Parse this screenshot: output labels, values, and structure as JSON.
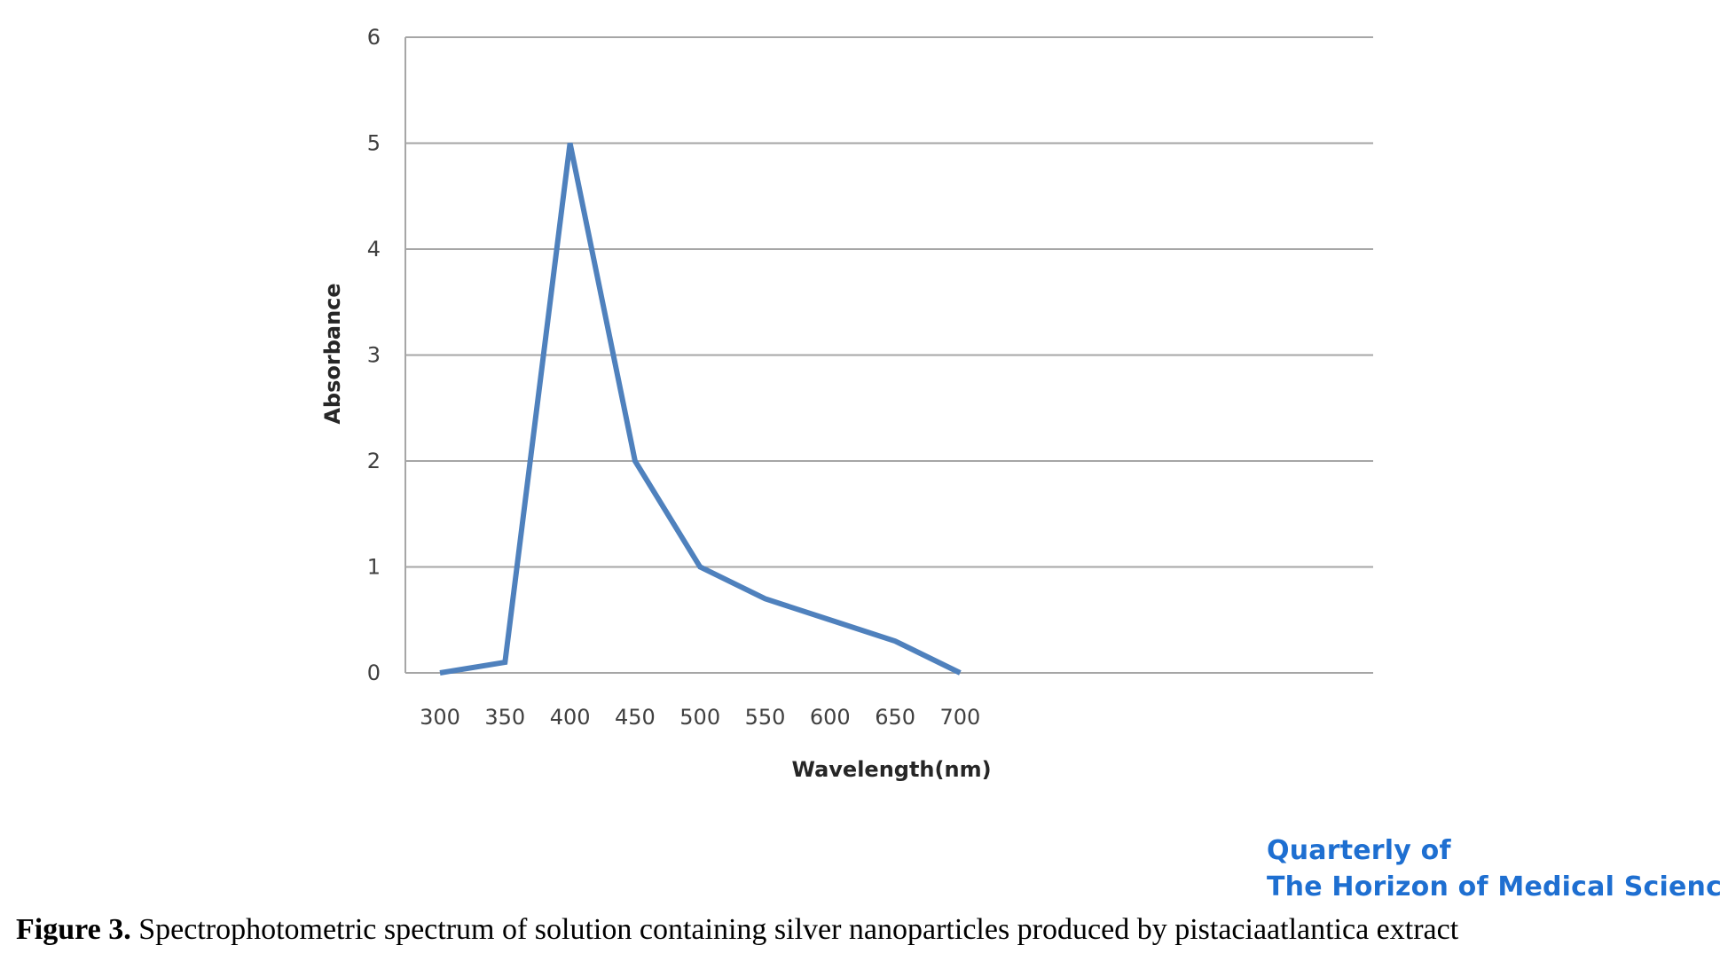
{
  "chart_data": {
    "type": "line",
    "xlabel": "Wavelength(nm)",
    "ylabel": "Absorbance",
    "x": [
      "300",
      "350",
      "400",
      "450",
      "500",
      "550",
      "600",
      "650",
      "700"
    ],
    "y_ticks": [
      "0",
      "1",
      "2",
      "3",
      "4",
      "5",
      "6"
    ],
    "ylim": [
      0,
      6
    ],
    "grid": true,
    "series": [
      {
        "values": [
          0,
          0.1,
          5,
          2,
          1,
          0.7,
          0.5,
          0.3,
          0
        ],
        "color": "#4f81bd"
      }
    ]
  },
  "watermark": {
    "line1": "Quarterly of",
    "line2": "The Horizon of Medical Sciences"
  },
  "caption": {
    "label": "Figure 3.",
    "text": " Spectrophotometric spectrum of solution containing silver nanoparticles produced by pistaciaatlantica extract"
  },
  "colors": {
    "grid": "#a6a6a6",
    "watermark": "#1e6fd1"
  }
}
